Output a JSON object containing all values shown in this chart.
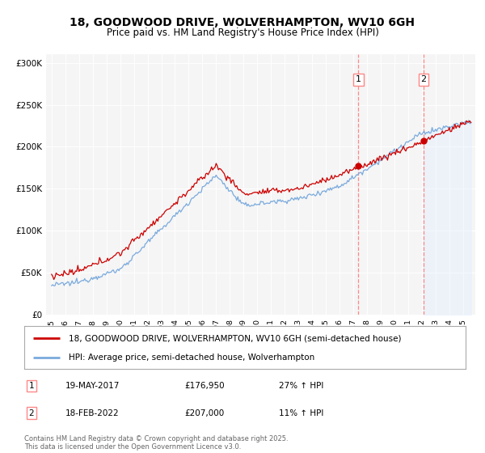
{
  "title": "18, GOODWOOD DRIVE, WOLVERHAMPTON, WV10 6GH",
  "subtitle": "Price paid vs. HM Land Registry's House Price Index (HPI)",
  "ylabel_ticks": [
    "£0",
    "£50K",
    "£100K",
    "£150K",
    "£200K",
    "£250K",
    "£300K"
  ],
  "ytick_values": [
    0,
    50000,
    100000,
    150000,
    200000,
    250000,
    300000
  ],
  "ylim": [
    0,
    310000
  ],
  "sale1_date": 2017.38,
  "sale1_price": 176950,
  "sale2_date": 2022.12,
  "sale2_price": 207000,
  "red_line_color": "#cc0000",
  "blue_line_color": "#7aaadd",
  "blue_fill_color": "#ddeeff",
  "vline_color": "#ff8888",
  "background_color": "#f5f5f5",
  "legend_entry1": "18, GOODWOOD DRIVE, WOLVERHAMPTON, WV10 6GH (semi-detached house)",
  "legend_entry2": "HPI: Average price, semi-detached house, Wolverhampton",
  "annotation1_date": "19-MAY-2017",
  "annotation1_price": "£176,950",
  "annotation1_pct": "27% ↑ HPI",
  "annotation2_date": "18-FEB-2022",
  "annotation2_price": "£207,000",
  "annotation2_pct": "11% ↑ HPI",
  "footer": "Contains HM Land Registry data © Crown copyright and database right 2025.\nThis data is licensed under the Open Government Licence v3.0.",
  "title_fontsize": 10,
  "subtitle_fontsize": 8.5,
  "axis_fontsize": 7.5,
  "legend_fontsize": 7.5,
  "annot_fontsize": 7.5
}
